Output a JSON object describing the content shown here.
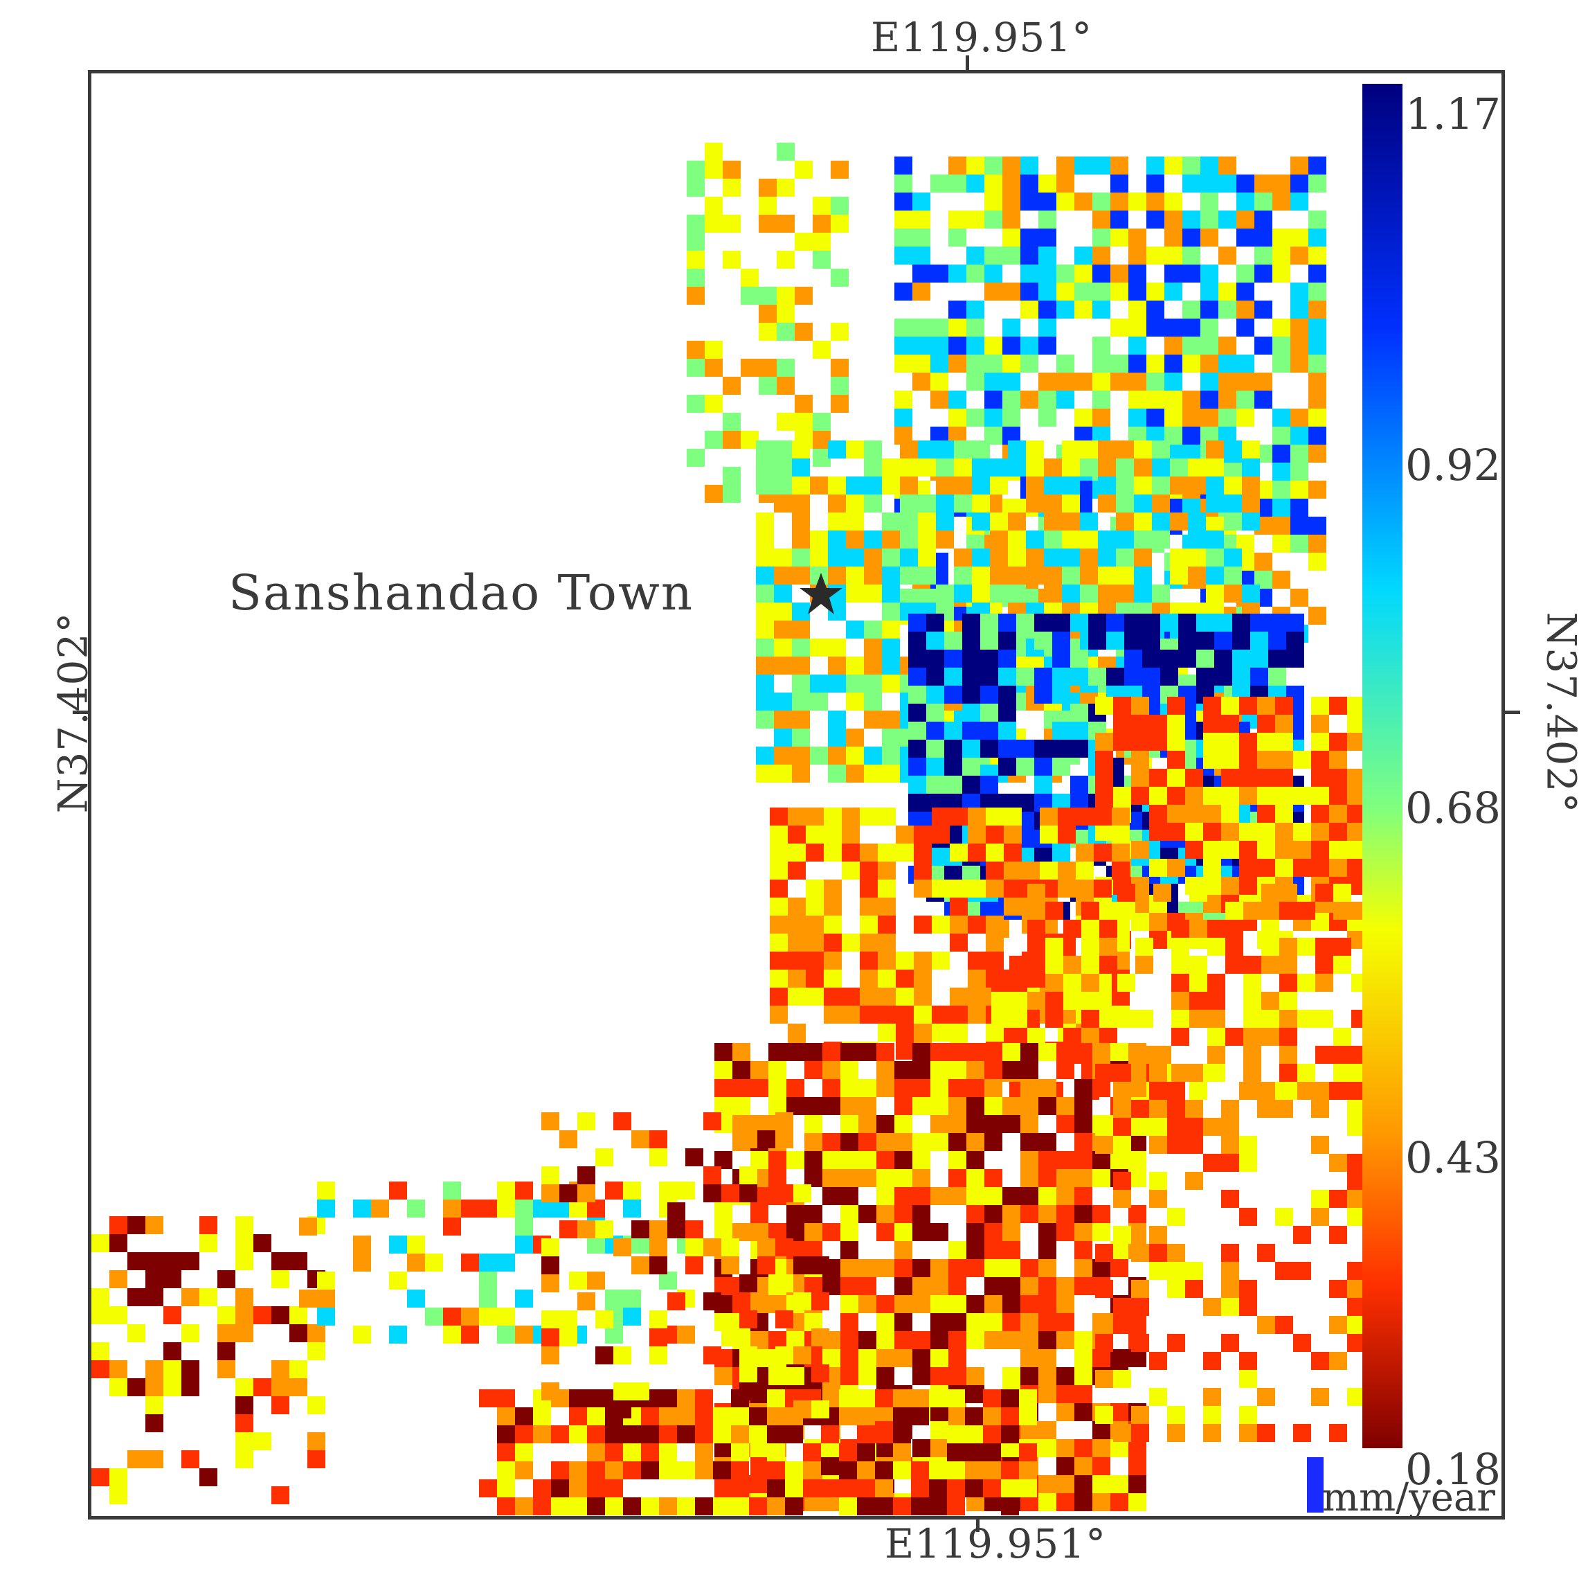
{
  "map": {
    "top_longitude": "E119.951°",
    "bottom_longitude": "E119.951°",
    "left_latitude": "N37.402°",
    "right_latitude": "N37.402°",
    "place_label": "Sanshandao Town",
    "place_marker": "star-icon"
  },
  "colorbar": {
    "ticks": [
      "1.17",
      "0.92",
      "0.68",
      "0.43",
      "0.18"
    ],
    "unit": "mm/year",
    "range": [
      0.18,
      1.17
    ],
    "colormap": "jet-reversed",
    "colors": [
      "#7f0000",
      "#ff3000",
      "#ff9800",
      "#f4ff00",
      "#7fff7f",
      "#00d8ff",
      "#0030ff",
      "#00007f"
    ]
  }
}
